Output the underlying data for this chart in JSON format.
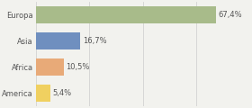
{
  "categories": [
    "Europa",
    "Asia",
    "Africa",
    "America"
  ],
  "values": [
    67.4,
    16.7,
    10.5,
    5.4
  ],
  "labels": [
    "67,4%",
    "16,7%",
    "10,5%",
    "5,4%"
  ],
  "bar_colors": [
    "#a8bb8a",
    "#6f8fbf",
    "#e8aa78",
    "#f0d060"
  ],
  "xlim": [
    0,
    80
  ],
  "background_color": "#f2f2ee",
  "label_fontsize": 6.0,
  "tick_fontsize": 6.0,
  "bar_height": 0.68,
  "grid_xticks": [
    0,
    20,
    40,
    60,
    80
  ]
}
